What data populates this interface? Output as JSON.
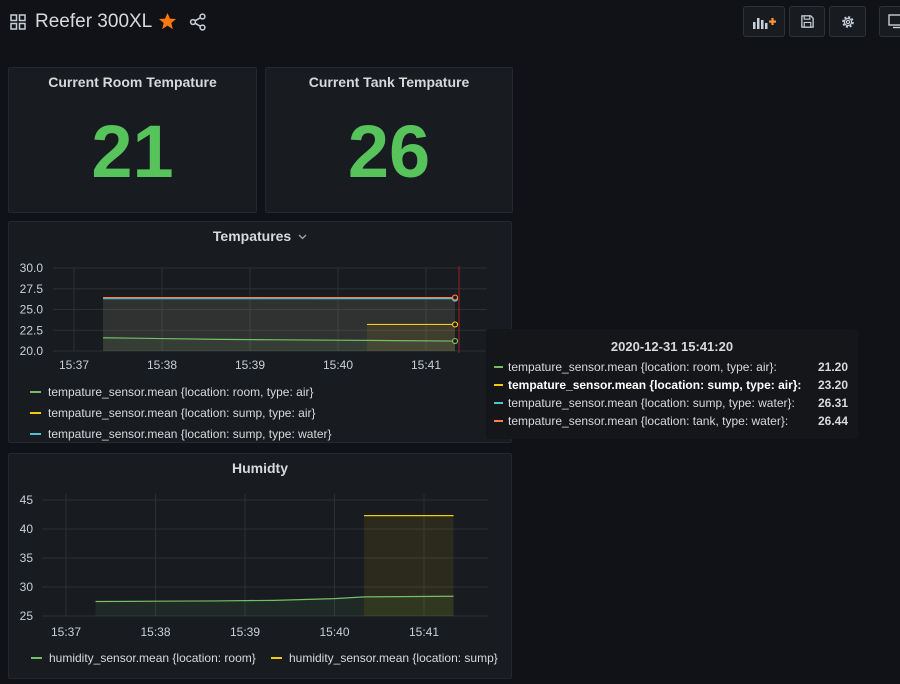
{
  "header": {
    "title": "Reefer 300XL",
    "icons": [
      "grid-icon",
      "star-icon",
      "share-icon",
      "add-panel-icon",
      "save-icon",
      "gear-icon",
      "tv-icon"
    ],
    "accent_color": "#ff780a"
  },
  "stats": {
    "room": {
      "title": "Current Room Tempature",
      "value": "21"
    },
    "tank": {
      "title": "Current Tank Tempature",
      "value": "26"
    },
    "value_color": "#56c35b"
  },
  "temperatures": {
    "title": "Tempatures",
    "legend": [
      {
        "label": "tempature_sensor.mean {location: room, type: air}",
        "color": "#73bf69"
      },
      {
        "label": "tempature_sensor.mean {location: sump, type: air}",
        "color": "#f2cc0c"
      },
      {
        "label": "tempature_sensor.mean {location: sump, type: water}",
        "color": "#5794f2"
      }
    ]
  },
  "humidity": {
    "title": "Humidty",
    "legend": [
      {
        "label": "humidity_sensor.mean {location: room}",
        "color": "#73bf69"
      },
      {
        "label": "humidity_sensor.mean {location: sump}",
        "color": "#f2cc0c"
      }
    ]
  },
  "tooltip": {
    "time": "2020-12-31 15:41:20",
    "rows": [
      {
        "label": "tempature_sensor.mean {location: room, type: air}:",
        "value": "21.20",
        "color": "#73bf69",
        "bold": false
      },
      {
        "label": "tempature_sensor.mean {location: sump, type: air}:",
        "value": "23.20",
        "color": "#f2cc0c",
        "bold": true
      },
      {
        "label": "tempature_sensor.mean {location: sump, type: water}:",
        "value": "26.31",
        "color": "#4bc4d4",
        "bold": false
      },
      {
        "label": "tempature_sensor.mean {location: tank, type: water}:",
        "value": "26.44",
        "color": "#ff7f4a",
        "bold": false
      }
    ]
  },
  "chart_data": [
    {
      "type": "line",
      "title": "Tempatures",
      "x_ticks": [
        "15:37",
        "15:38",
        "15:39",
        "15:40",
        "15:41"
      ],
      "y_ticks": [
        "20.0",
        "22.5",
        "25.0",
        "27.5",
        "30.0"
      ],
      "ylim": [
        20,
        30
      ],
      "xlim_minutes": [
        36.6,
        41.5
      ],
      "grid": true,
      "legend_position": "bottom",
      "series": [
        {
          "name": "tempature_sensor.mean {location: room, type: air}",
          "color": "#73bf69",
          "x": [
            37.33,
            38,
            38.67,
            39.33,
            40,
            40.67,
            41.33
          ],
          "y": [
            21.6,
            21.5,
            21.4,
            21.35,
            21.3,
            21.25,
            21.2
          ]
        },
        {
          "name": "tempature_sensor.mean {location: sump, type: air}",
          "color": "#f2cc0c",
          "x": [
            40.33,
            41.33
          ],
          "y": [
            23.2,
            23.2
          ]
        },
        {
          "name": "tempature_sensor.mean {location: sump, type: water}",
          "color": "#4bc4d4",
          "x": [
            37.33,
            41.33
          ],
          "y": [
            26.3,
            26.31
          ]
        },
        {
          "name": "tempature_sensor.mean {location: tank, type: water}",
          "color": "#ff7f4a",
          "x": [
            37.33,
            41.33
          ],
          "y": [
            26.44,
            26.44
          ]
        }
      ],
      "hover_x": 41.33
    },
    {
      "type": "line",
      "title": "Humidty",
      "x_ticks": [
        "15:37",
        "15:38",
        "15:39",
        "15:40",
        "15:41"
      ],
      "y_ticks": [
        "25",
        "30",
        "35",
        "40",
        "45"
      ],
      "ylim": [
        25,
        45
      ],
      "xlim_minutes": [
        36.6,
        41.5
      ],
      "grid": true,
      "legend_position": "bottom",
      "series": [
        {
          "name": "humidity_sensor.mean {location: room}",
          "color": "#73bf69",
          "x": [
            37.33,
            38,
            38.67,
            39.33,
            40,
            40.33,
            41.33
          ],
          "y": [
            27.5,
            27.55,
            27.6,
            27.7,
            28.0,
            28.3,
            28.4
          ]
        },
        {
          "name": "humidity_sensor.mean {location: sump}",
          "color": "#f2cc0c",
          "x": [
            40.33,
            41.33
          ],
          "y": [
            42.3,
            42.3
          ]
        }
      ]
    }
  ]
}
